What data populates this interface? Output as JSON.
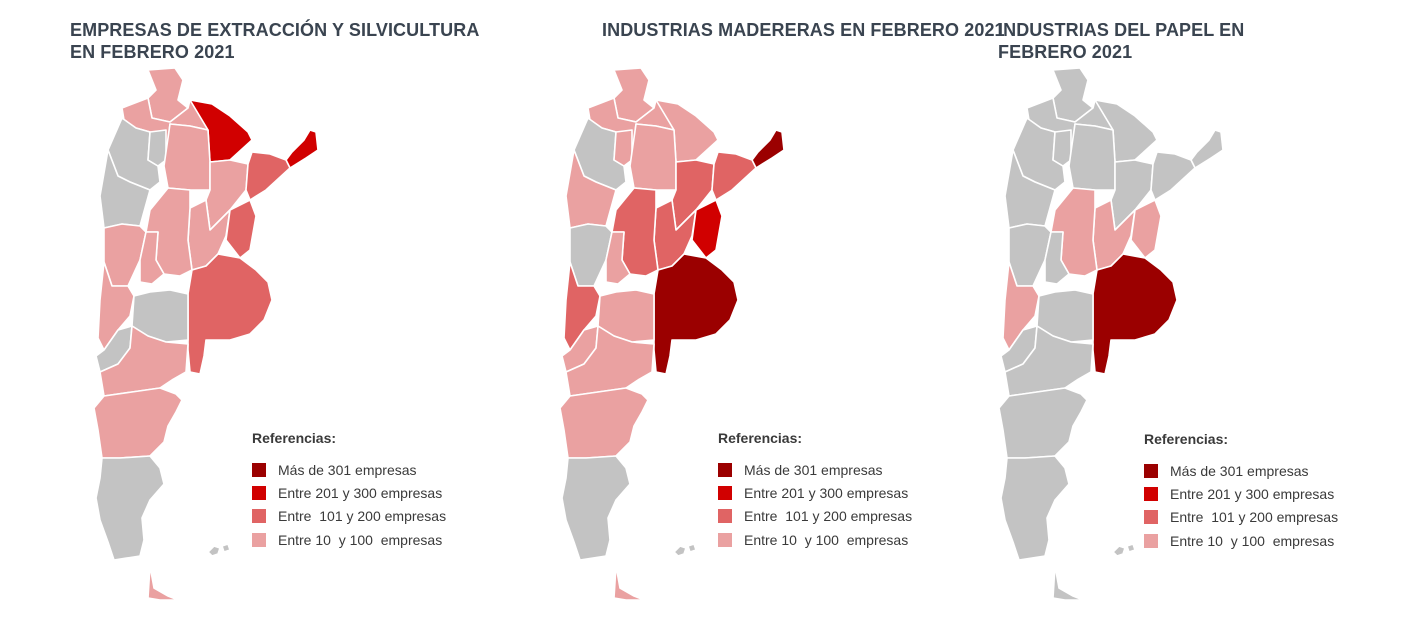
{
  "colors": {
    "cat1": "#9b0000",
    "cat2": "#d10000",
    "cat3": "#e06464",
    "cat4": "#eaa1a1",
    "none": "#c3c3c3"
  },
  "legend": {
    "title": "Referencias:",
    "items": [
      {
        "key": "cat1",
        "label": "Más de 301 empresas"
      },
      {
        "key": "cat2",
        "label": "Entre 201 y 300 empresas"
      },
      {
        "key": "cat3",
        "label": "Entre  101 y 200 empresas"
      },
      {
        "key": "cat4",
        "label": "Entre 10  y 100  empresas"
      }
    ]
  },
  "maps": [
    {
      "title": "EMPRESAS DE EXTRACCIÓN Y SILVICULTURA EN FEBRERO 2021",
      "provinces": {
        "jujuy": "cat4",
        "salta": "cat4",
        "formosa": "cat2",
        "misiones": "cat2",
        "catamarca": "none",
        "tucuman": "none",
        "santiago": "cat4",
        "chaco": "cat4",
        "corrientes": "cat3",
        "la_rioja": "none",
        "santa_fe": "cat4",
        "entre_rios": "cat3",
        "san_juan": "cat4",
        "cordoba": "cat4",
        "san_luis": "cat4",
        "buenos_aires": "cat3",
        "mendoza": "cat4",
        "la_pampa": "none",
        "neuquen": "none",
        "rio_negro": "cat4",
        "chubut": "cat4",
        "santa_cruz": "none",
        "tierra_del_fuego": "cat4"
      }
    },
    {
      "title": "INDUSTRIAS MADERERAS EN FEBRERO 2021",
      "provinces": {
        "jujuy": "cat4",
        "salta": "cat4",
        "formosa": "cat4",
        "misiones": "cat1",
        "catamarca": "none",
        "tucuman": "cat4",
        "santiago": "cat4",
        "chaco": "cat3",
        "corrientes": "cat3",
        "la_rioja": "cat4",
        "santa_fe": "cat3",
        "entre_rios": "cat2",
        "san_juan": "none",
        "cordoba": "cat3",
        "san_luis": "cat4",
        "buenos_aires": "cat1",
        "mendoza": "cat3",
        "la_pampa": "cat4",
        "neuquen": "cat4",
        "rio_negro": "cat4",
        "chubut": "cat4",
        "santa_cruz": "none",
        "tierra_del_fuego": "cat4"
      }
    },
    {
      "title": "INDUSTRIAS DEL PAPEL EN FEBRERO 2021",
      "provinces": {
        "jujuy": "none",
        "salta": "none",
        "formosa": "none",
        "misiones": "none",
        "catamarca": "none",
        "tucuman": "none",
        "santiago": "none",
        "chaco": "none",
        "corrientes": "none",
        "la_rioja": "none",
        "santa_fe": "cat4",
        "entre_rios": "cat4",
        "san_juan": "none",
        "cordoba": "cat4",
        "san_luis": "none",
        "buenos_aires": "cat1",
        "mendoza": "cat4",
        "la_pampa": "none",
        "neuquen": "none",
        "rio_negro": "none",
        "chubut": "none",
        "santa_cruz": "none",
        "tierra_del_fuego": "none"
      }
    }
  ]
}
